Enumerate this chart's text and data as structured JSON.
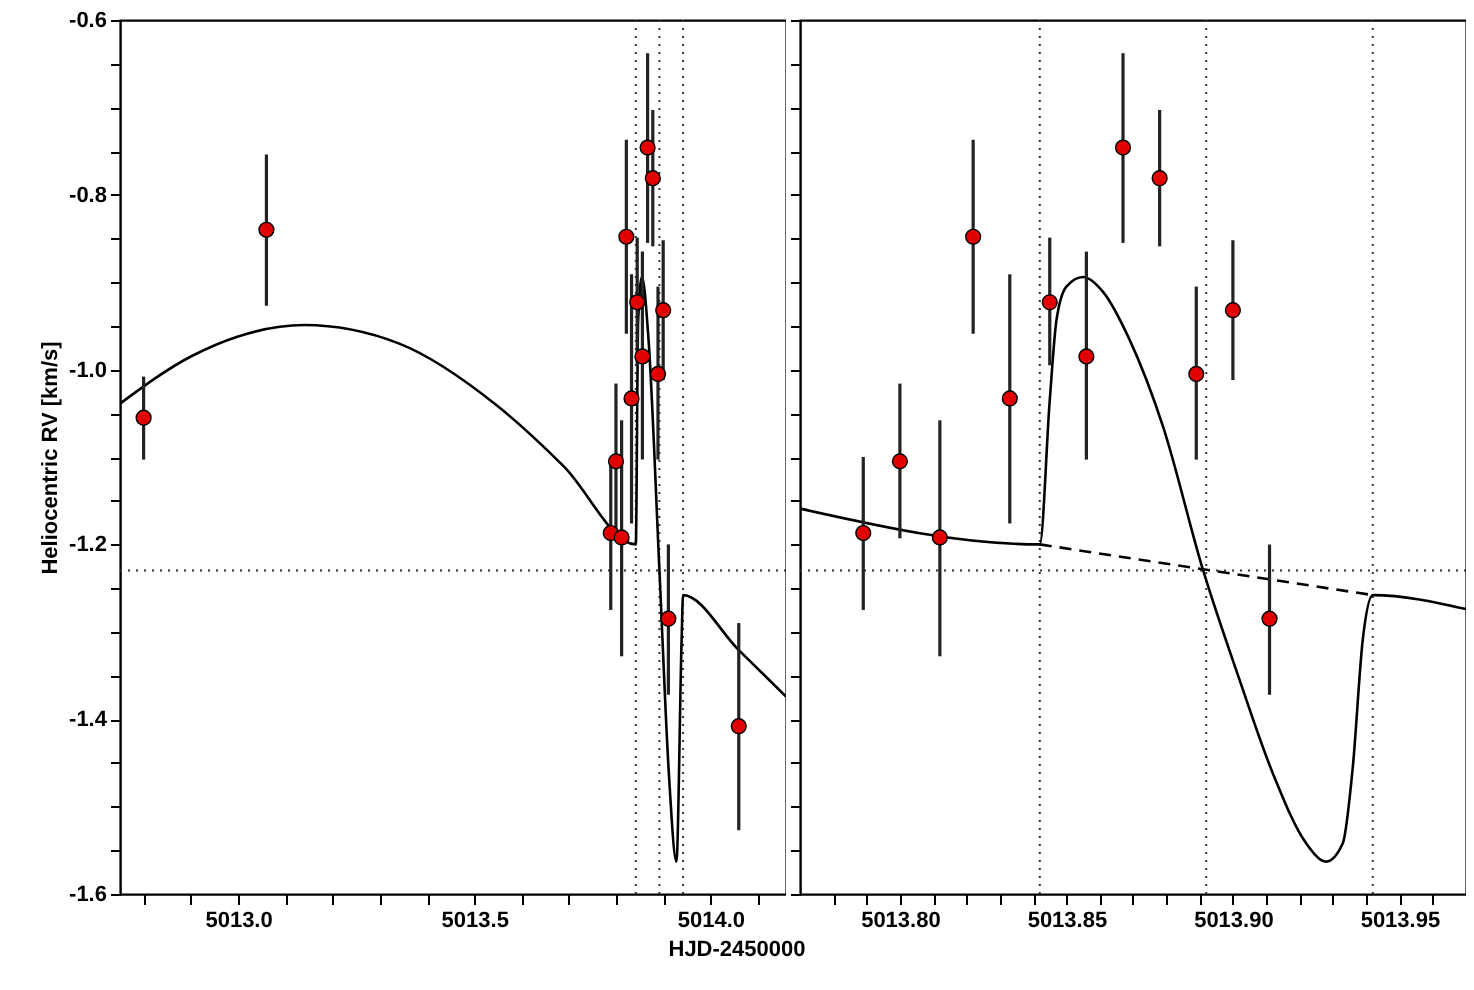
{
  "chart_data": [
    {
      "type": "scatter",
      "ylabel": "Heliocentric RV [km/s]",
      "xlabel": "HJD-2450000",
      "xlim": [
        5012.75,
        5014.16
      ],
      "ylim": [
        -1.6,
        -0.6
      ],
      "xticks": [
        {
          "value": 5012.8,
          "label": null
        },
        {
          "value": 5012.9,
          "label": null
        },
        {
          "value": 5013.0,
          "label": "5013.0"
        },
        {
          "value": 5013.1,
          "label": null
        },
        {
          "value": 5013.2,
          "label": null
        },
        {
          "value": 5013.3,
          "label": null
        },
        {
          "value": 5013.4,
          "label": null
        },
        {
          "value": 5013.5,
          "label": "5013.5"
        },
        {
          "value": 5013.6,
          "label": null
        },
        {
          "value": 5013.7,
          "label": null
        },
        {
          "value": 5013.8,
          "label": null
        },
        {
          "value": 5013.9,
          "label": null
        },
        {
          "value": 5014.0,
          "label": "5014.0"
        },
        {
          "value": 5014.1,
          "label": null
        }
      ],
      "yticks": [
        {
          "value": -0.6,
          "label": "-0.6"
        },
        {
          "value": -0.65,
          "label": null
        },
        {
          "value": -0.7,
          "label": null
        },
        {
          "value": -0.75,
          "label": null
        },
        {
          "value": -0.8,
          "label": "-0.8"
        },
        {
          "value": -0.85,
          "label": null
        },
        {
          "value": -0.9,
          "label": null
        },
        {
          "value": -0.95,
          "label": null
        },
        {
          "value": -1.0,
          "label": "-1.0"
        },
        {
          "value": -1.05,
          "label": null
        },
        {
          "value": -1.1,
          "label": null
        },
        {
          "value": -1.15,
          "label": null
        },
        {
          "value": -1.2,
          "label": "-1.2"
        },
        {
          "value": -1.25,
          "label": null
        },
        {
          "value": -1.3,
          "label": null
        },
        {
          "value": -1.35,
          "label": null
        },
        {
          "value": -1.4,
          "label": "-1.4"
        },
        {
          "value": -1.45,
          "label": null
        },
        {
          "value": -1.5,
          "label": null
        },
        {
          "value": -1.55,
          "label": null
        },
        {
          "value": -1.6,
          "label": "-1.6"
        }
      ],
      "ref_lines": [
        {
          "axis": "y",
          "value": -1.23,
          "line_style": "dotted"
        },
        {
          "axis": "x",
          "value": 5013.842,
          "line_style": "dotted"
        },
        {
          "axis": "x",
          "value": 5013.892,
          "line_style": "dotted"
        },
        {
          "axis": "x",
          "value": 5013.942,
          "line_style": "dotted"
        }
      ],
      "series": [
        {
          "type": "line",
          "color": "#000000",
          "line_style": "solid",
          "x": [
            5012.75,
            5012.9,
            5013.0,
            5013.14,
            5013.34,
            5013.55,
            5013.69,
            5013.842,
            5013.847,
            5013.855,
            5013.869,
            5013.892,
            5013.912,
            5013.928,
            5013.939,
            5013.942,
            5014.06,
            5014.16
          ],
          "values": [
            -1.039,
            -0.985,
            -0.962,
            -0.949,
            -0.97,
            -1.042,
            -1.111,
            -1.2,
            -0.944,
            -0.894,
            -0.966,
            -1.229,
            -1.462,
            -1.563,
            -1.309,
            -1.258,
            -1.321,
            -1.374
          ]
        },
        {
          "marker": "circle",
          "color": "#e00000",
          "x": [
            5012.8,
            5013.06,
            5013.789,
            5013.8,
            5013.812,
            5013.822,
            5013.833,
            5013.845,
            5013.856,
            5013.867,
            5013.878,
            5013.889,
            5013.9,
            5013.911,
            5014.06
          ],
          "values": [
            -1.055,
            -0.84,
            -1.187,
            -1.105,
            -1.192,
            -0.848,
            -1.033,
            -0.923,
            -0.985,
            -0.746,
            -0.781,
            -1.005,
            -0.932,
            -1.285,
            -1.408
          ],
          "errors": [
            [
              -1.103,
              -1.008
            ],
            [
              -0.927,
              -0.754
            ],
            [
              -1.275,
              -1.1
            ],
            [
              -1.193,
              -1.016
            ],
            [
              -1.328,
              -1.058
            ],
            [
              -0.959,
              -0.737
            ],
            [
              -1.176,
              -0.891
            ],
            [
              -0.995,
              -0.849
            ],
            [
              -1.103,
              -0.865
            ],
            [
              -0.855,
              -0.638
            ],
            [
              -0.859,
              -0.703
            ],
            [
              -1.103,
              -0.905
            ],
            [
              -1.012,
              -0.852
            ],
            [
              -1.372,
              -1.2
            ],
            [
              -1.527,
              -1.29
            ]
          ]
        }
      ]
    },
    {
      "type": "scatter",
      "tick_labels": "x",
      "xlim": [
        5013.77,
        5013.97
      ],
      "ylim": [
        -1.6,
        -0.6
      ],
      "xticks": [
        {
          "value": 5013.78,
          "label": null
        },
        {
          "value": 5013.79,
          "label": null
        },
        {
          "value": 5013.8,
          "label": "5013.80"
        },
        {
          "value": 5013.81,
          "label": null
        },
        {
          "value": 5013.82,
          "label": null
        },
        {
          "value": 5013.83,
          "label": null
        },
        {
          "value": 5013.84,
          "label": null
        },
        {
          "value": 5013.85,
          "label": "5013.85"
        },
        {
          "value": 5013.86,
          "label": null
        },
        {
          "value": 5013.87,
          "label": null
        },
        {
          "value": 5013.88,
          "label": null
        },
        {
          "value": 5013.89,
          "label": null
        },
        {
          "value": 5013.9,
          "label": "5013.90"
        },
        {
          "value": 5013.91,
          "label": null
        },
        {
          "value": 5013.92,
          "label": null
        },
        {
          "value": 5013.93,
          "label": null
        },
        {
          "value": 5013.94,
          "label": null
        },
        {
          "value": 5013.95,
          "label": "5013.95"
        },
        {
          "value": 5013.96,
          "label": null
        }
      ],
      "yticks": [
        {
          "value": -0.6,
          "label": null
        },
        {
          "value": -0.65,
          "label": null
        },
        {
          "value": -0.7,
          "label": null
        },
        {
          "value": -0.75,
          "label": null
        },
        {
          "value": -0.8,
          "label": null
        },
        {
          "value": -0.85,
          "label": null
        },
        {
          "value": -0.9,
          "label": null
        },
        {
          "value": -0.95,
          "label": null
        },
        {
          "value": -1.0,
          "label": null
        },
        {
          "value": -1.05,
          "label": null
        },
        {
          "value": -1.1,
          "label": null
        },
        {
          "value": -1.15,
          "label": null
        },
        {
          "value": -1.2,
          "label": null
        },
        {
          "value": -1.25,
          "label": null
        },
        {
          "value": -1.3,
          "label": null
        },
        {
          "value": -1.35,
          "label": null
        },
        {
          "value": -1.4,
          "label": null
        },
        {
          "value": -1.45,
          "label": null
        },
        {
          "value": -1.5,
          "label": null
        },
        {
          "value": -1.55,
          "label": null
        },
        {
          "value": -1.6,
          "label": null
        }
      ],
      "ref_lines": [
        {
          "axis": "y",
          "value": -1.23,
          "line_style": "dotted"
        },
        {
          "axis": "x",
          "value": 5013.842,
          "line_style": "dotted"
        },
        {
          "axis": "x",
          "value": 5013.892,
          "line_style": "dotted"
        },
        {
          "axis": "x",
          "value": 5013.942,
          "line_style": "dotted"
        }
      ],
      "series": [
        {
          "type": "line",
          "color": "#000000",
          "line_style": "solid",
          "x": [
            5013.77,
            5013.842,
            5013.845,
            5013.847,
            5013.85,
            5013.855,
            5013.861,
            5013.869,
            5013.879,
            5013.891,
            5013.902,
            5013.912,
            5013.922,
            5013.928,
            5013.933,
            5013.936,
            5013.939,
            5013.942,
            5013.97
          ],
          "values": [
            -1.159,
            -1.2,
            -1.035,
            -0.944,
            -0.905,
            -0.894,
            -0.911,
            -0.966,
            -1.065,
            -1.229,
            -1.355,
            -1.462,
            -1.542,
            -1.563,
            -1.542,
            -1.455,
            -1.309,
            -1.258,
            -1.274
          ]
        },
        {
          "type": "line",
          "color": "#000000",
          "line_style": "dashed",
          "x": [
            5013.842,
            5013.942
          ],
          "values": [
            -1.2,
            -1.258
          ]
        },
        {
          "marker": "circle",
          "color": "#e00000",
          "x": [
            5013.789,
            5013.8,
            5013.812,
            5013.822,
            5013.833,
            5013.845,
            5013.856,
            5013.867,
            5013.878,
            5013.889,
            5013.9,
            5013.911
          ],
          "values": [
            -1.187,
            -1.105,
            -1.192,
            -0.848,
            -1.033,
            -0.923,
            -0.985,
            -0.746,
            -0.781,
            -1.005,
            -0.932,
            -1.285
          ],
          "errors": [
            [
              -1.275,
              -1.1
            ],
            [
              -1.193,
              -1.016
            ],
            [
              -1.328,
              -1.058
            ],
            [
              -0.959,
              -0.737
            ],
            [
              -1.176,
              -0.891
            ],
            [
              -0.995,
              -0.849
            ],
            [
              -1.103,
              -0.865
            ],
            [
              -0.855,
              -0.638
            ],
            [
              -0.859,
              -0.703
            ],
            [
              -1.103,
              -0.905
            ],
            [
              -1.012,
              -0.852
            ],
            [
              -1.372,
              -1.2
            ]
          ]
        }
      ]
    }
  ]
}
